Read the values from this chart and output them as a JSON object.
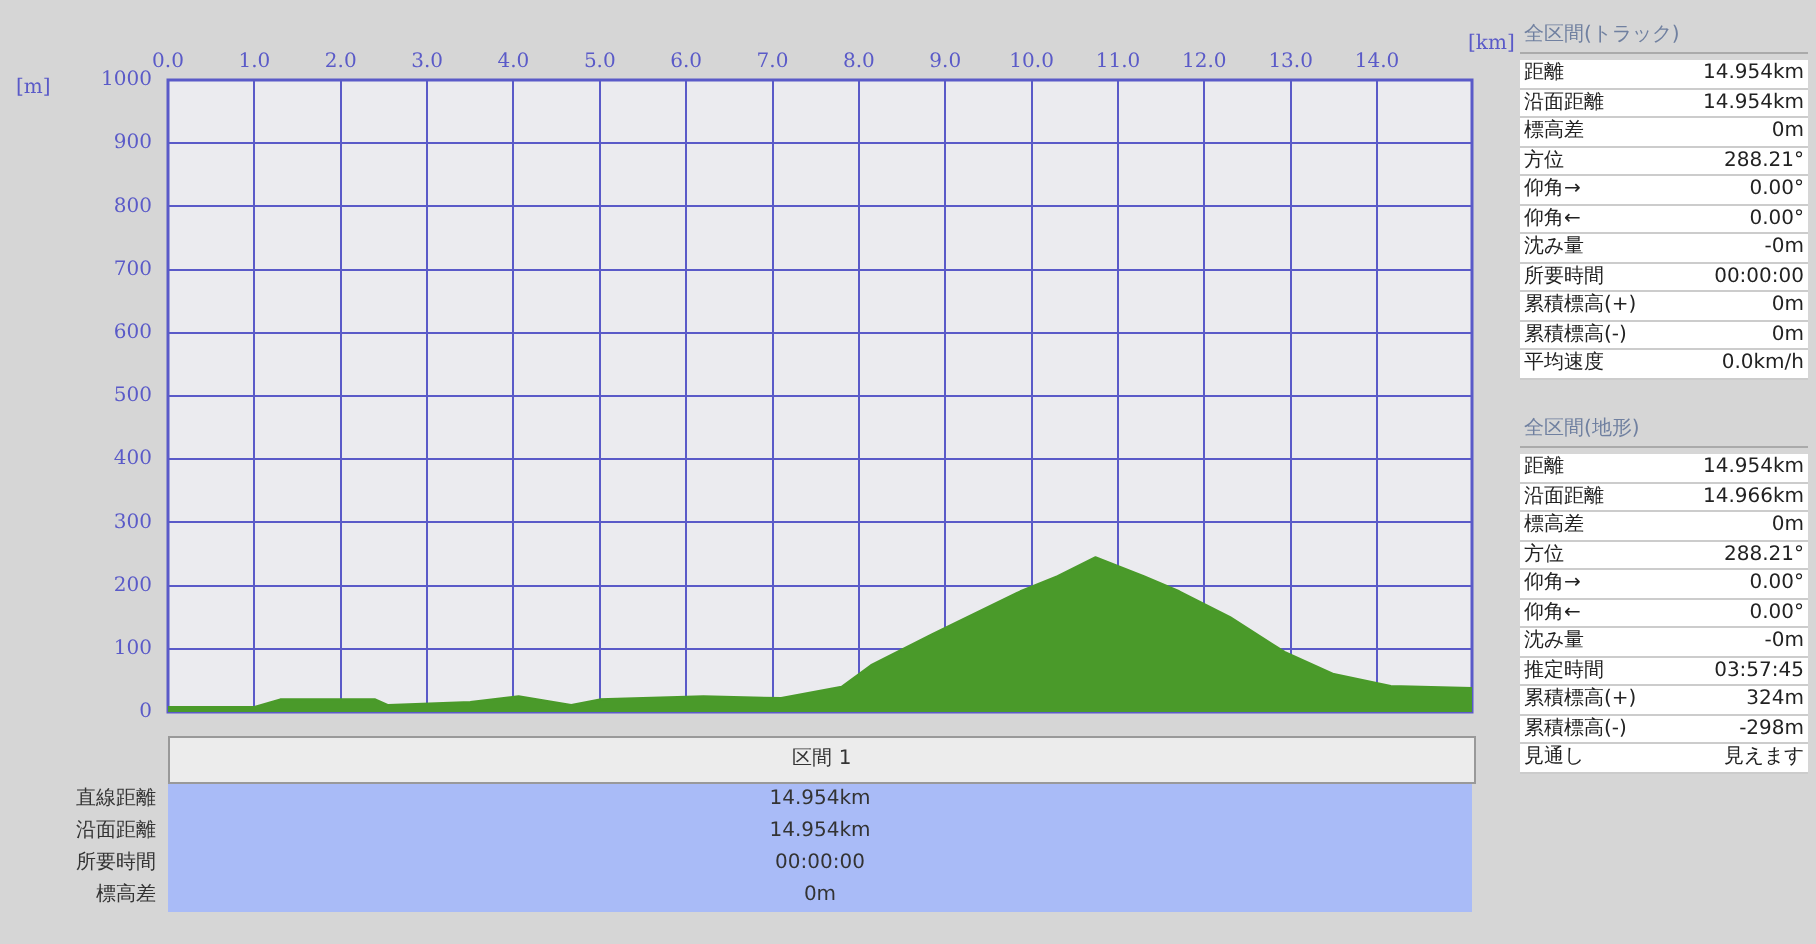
{
  "chart_data": [
    {
      "type": "area",
      "xlabel": "[km]",
      "ylabel": "[m]",
      "color": "#4a9a2a",
      "grid": true,
      "x": [
        0,
        1.0,
        1.3,
        2.4,
        2.55,
        3.5,
        4.06,
        4.67,
        5.0,
        6.2,
        7.1,
        7.8,
        8.14,
        8.85,
        9.87,
        10.3,
        10.74,
        11.3,
        11.71,
        12.3,
        12.93,
        13.5,
        14.16,
        15.1
      ],
      "values": [
        8,
        8,
        20,
        20,
        11,
        16,
        25,
        11,
        20,
        25,
        22,
        40,
        74,
        123,
        191,
        215,
        245,
        215,
        191,
        150,
        95,
        60,
        41,
        38
      ],
      "xlim": [
        0,
        15.1
      ],
      "xticks": [
        {
          "value": 0,
          "label": "0.0"
        },
        {
          "value": 1,
          "label": "1.0"
        },
        {
          "value": 2,
          "label": "2.0"
        },
        {
          "value": 3,
          "label": "3.0"
        },
        {
          "value": 4,
          "label": "4.0"
        },
        {
          "value": 5,
          "label": "5.0"
        },
        {
          "value": 6,
          "label": "6.0"
        },
        {
          "value": 7,
          "label": "7.0"
        },
        {
          "value": 8,
          "label": "8.0"
        },
        {
          "value": 9,
          "label": "9.0"
        },
        {
          "value": 10,
          "label": "10.0"
        },
        {
          "value": 11,
          "label": "11.0"
        },
        {
          "value": 12,
          "label": "12.0"
        },
        {
          "value": 13,
          "label": "13.0"
        },
        {
          "value": 14,
          "label": "14.0"
        }
      ],
      "ylim": [
        0,
        1000
      ],
      "yticks": [
        0,
        100,
        200,
        300,
        400,
        500,
        600,
        700,
        800,
        900,
        1000
      ]
    },
    {
      "type": "other",
      "title": "全区間(トラック)",
      "annotations": [
        "距離",
        "14.954km",
        "沿面距離",
        "14.954km",
        "標高差",
        "0m",
        "方位",
        "288.21°",
        "仰角→",
        "0.00°",
        "仰角←",
        "0.00°",
        "沈み量",
        "-0m",
        "所要時間",
        "00:00:00",
        "累積標高(+)",
        "0m",
        "累積標高(-)",
        "0m",
        "平均速度",
        "0.0km/h"
      ]
    },
    {
      "type": "other",
      "title": "全区間(地形)",
      "annotations": [
        "距離",
        "14.954km",
        "沿面距離",
        "14.966km",
        "標高差",
        "0m",
        "方位",
        "288.21°",
        "仰角→",
        "0.00°",
        "仰角←",
        "0.00°",
        "沈み量",
        "-0m",
        "推定時間",
        "03:57:45",
        "累積標高(+)",
        "324m",
        "累積標高(-)",
        "-298m",
        "見通し",
        "見えます"
      ]
    },
    {
      "type": "other",
      "title": "区間 1",
      "annotations": [
        "直線距離",
        "14.954km",
        "沿面距離",
        "14.954km",
        "所要時間",
        "00:00:00",
        "標高差",
        "0m"
      ]
    }
  ]
}
